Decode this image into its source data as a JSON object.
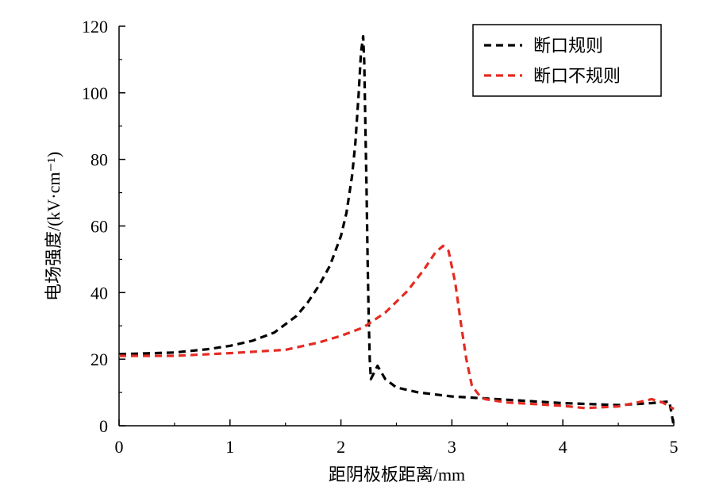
{
  "chart_data": {
    "type": "line",
    "title": "",
    "xlabel": "距阴极板距离/mm",
    "ylabel": "电场强度/(kV·cm⁻¹)",
    "xlim": [
      0,
      5
    ],
    "ylim": [
      0,
      120
    ],
    "xticks": [
      "0",
      "1",
      "2",
      "3",
      "4",
      "5"
    ],
    "yticks": [
      "0",
      "20",
      "40",
      "60",
      "80",
      "100",
      "120"
    ],
    "grid": false,
    "legend_position": "top-right",
    "series": [
      {
        "name": "断口规则",
        "color": "#000000",
        "line_style": "dashed",
        "points": [
          [
            0,
            21.5
          ],
          [
            0.5,
            22
          ],
          [
            0.8,
            23
          ],
          [
            1.0,
            24
          ],
          [
            1.2,
            25.5
          ],
          [
            1.4,
            28
          ],
          [
            1.6,
            33
          ],
          [
            1.7,
            37
          ],
          [
            1.8,
            42
          ],
          [
            1.9,
            48
          ],
          [
            2.0,
            57
          ],
          [
            2.05,
            64
          ],
          [
            2.1,
            75
          ],
          [
            2.13,
            85
          ],
          [
            2.16,
            100
          ],
          [
            2.18,
            112
          ],
          [
            2.2,
            117
          ],
          [
            2.21,
            109
          ],
          [
            2.22,
            90
          ],
          [
            2.23,
            72
          ],
          [
            2.24,
            50
          ],
          [
            2.25,
            32
          ],
          [
            2.26,
            20
          ],
          [
            2.27,
            14
          ],
          [
            2.3,
            16
          ],
          [
            2.33,
            18
          ],
          [
            2.4,
            14
          ],
          [
            2.5,
            11.5
          ],
          [
            2.7,
            10
          ],
          [
            3.0,
            8.8
          ],
          [
            3.5,
            7.8
          ],
          [
            4.0,
            6.8
          ],
          [
            4.5,
            6.2
          ],
          [
            4.8,
            6.8
          ],
          [
            4.96,
            7.3
          ],
          [
            5.0,
            0
          ]
        ]
      },
      {
        "name": "断口不规则",
        "color": "#e52b22",
        "line_style": "dashed",
        "points": [
          [
            0,
            21
          ],
          [
            0.5,
            21
          ],
          [
            1.0,
            21.8
          ],
          [
            1.5,
            22.8
          ],
          [
            1.8,
            25
          ],
          [
            2.0,
            27
          ],
          [
            2.2,
            29.5
          ],
          [
            2.4,
            34
          ],
          [
            2.6,
            40.5
          ],
          [
            2.75,
            47
          ],
          [
            2.85,
            52
          ],
          [
            2.92,
            54
          ],
          [
            2.97,
            52.5
          ],
          [
            3.03,
            43
          ],
          [
            3.08,
            31
          ],
          [
            3.13,
            20
          ],
          [
            3.18,
            12
          ],
          [
            3.25,
            9
          ],
          [
            3.3,
            8
          ],
          [
            3.5,
            7
          ],
          [
            4.0,
            6
          ],
          [
            4.2,
            5.3
          ],
          [
            4.5,
            5.8
          ],
          [
            4.7,
            7.2
          ],
          [
            4.8,
            8
          ],
          [
            4.9,
            7
          ],
          [
            5.0,
            5
          ]
        ]
      }
    ]
  }
}
